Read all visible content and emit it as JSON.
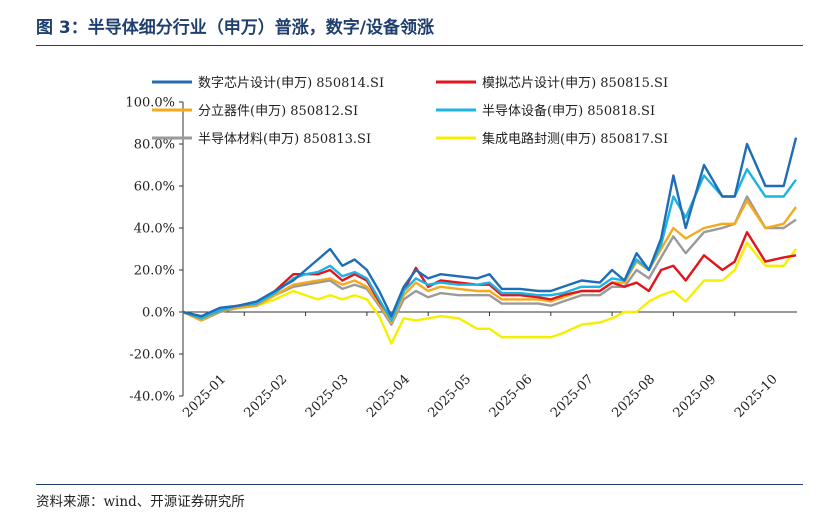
{
  "header": {
    "title": "图 3：半导体细分行业（申万）普涨，数字/设备领涨"
  },
  "footer": {
    "source": "资料来源：wind、开源证券研究所"
  },
  "chart_data": {
    "type": "line",
    "title": "图 3：半导体细分行业（申万）普涨，数字/设备领涨",
    "xlabel": "",
    "ylabel": "",
    "ylim": [
      -40,
      100
    ],
    "yticks": [
      "100.0%",
      "80.0%",
      "60.0%",
      "40.0%",
      "20.0%",
      "0.0%",
      "-20.0%",
      "-40.0%"
    ],
    "ytick_values": [
      100,
      80,
      60,
      40,
      20,
      0,
      -20,
      -40
    ],
    "xticks": [
      "2025-01",
      "2025-02",
      "2025-03",
      "2025-04",
      "2025-05",
      "2025-06",
      "2025-07",
      "2025-08",
      "2025-09",
      "2025-10"
    ],
    "xticks_t": [
      0,
      1,
      2,
      3,
      4,
      5,
      6,
      7,
      8,
      9
    ],
    "xlim": [
      0,
      10.1
    ],
    "grid": false,
    "legend_position": "top",
    "series": [
      {
        "name": "数字芯片设计(申万) 850814.SI",
        "color": "#1f6db5",
        "t": [
          0,
          0.3,
          0.6,
          0.9,
          1.2,
          1.5,
          1.8,
          2.0,
          2.2,
          2.4,
          2.6,
          2.8,
          3.0,
          3.2,
          3.4,
          3.6,
          3.8,
          4.0,
          4.2,
          4.5,
          4.8,
          5.0,
          5.2,
          5.5,
          5.8,
          6.0,
          6.2,
          6.5,
          6.8,
          7.0,
          7.2,
          7.4,
          7.6,
          7.8,
          8.0,
          8.2,
          8.5,
          8.8,
          9.0,
          9.2,
          9.5,
          9.8,
          10.0
        ],
        "values": [
          0,
          -2,
          2,
          3,
          5,
          10,
          15,
          20,
          25,
          30,
          22,
          25,
          20,
          10,
          -2,
          12,
          20,
          16,
          18,
          17,
          16,
          18,
          11,
          11,
          10,
          10,
          12,
          15,
          14,
          20,
          15,
          28,
          20,
          35,
          65,
          40,
          70,
          55,
          55,
          80,
          60,
          60,
          83
        ]
      },
      {
        "name": "模拟芯片设计(申万) 850815.SI",
        "color": "#e3141b",
        "t": [
          0,
          0.3,
          0.6,
          0.9,
          1.2,
          1.5,
          1.8,
          2.0,
          2.2,
          2.4,
          2.6,
          2.8,
          3.0,
          3.2,
          3.4,
          3.6,
          3.8,
          4.0,
          4.2,
          4.5,
          4.8,
          5.0,
          5.2,
          5.5,
          5.8,
          6.0,
          6.2,
          6.5,
          6.8,
          7.0,
          7.2,
          7.4,
          7.6,
          7.8,
          8.0,
          8.2,
          8.5,
          8.8,
          9.0,
          9.2,
          9.5,
          9.8,
          10.0
        ],
        "values": [
          0,
          -3,
          1,
          3,
          4,
          10,
          18,
          18,
          18,
          20,
          15,
          18,
          15,
          5,
          -3,
          10,
          21,
          12,
          15,
          14,
          13,
          13,
          8,
          8,
          7,
          6,
          8,
          10,
          10,
          14,
          12,
          14,
          10,
          20,
          22,
          15,
          27,
          20,
          24,
          38,
          24,
          26,
          27
        ]
      },
      {
        "name": "分立器件(申万) 850812.SI",
        "color": "#f6a91a",
        "t": [
          0,
          0.3,
          0.6,
          0.9,
          1.2,
          1.5,
          1.8,
          2.0,
          2.2,
          2.4,
          2.6,
          2.8,
          3.0,
          3.2,
          3.4,
          3.6,
          3.8,
          4.0,
          4.2,
          4.5,
          4.8,
          5.0,
          5.2,
          5.5,
          5.8,
          6.0,
          6.2,
          6.5,
          6.8,
          7.0,
          7.2,
          7.4,
          7.6,
          7.8,
          8.0,
          8.2,
          8.5,
          8.8,
          9.0,
          9.2,
          9.5,
          9.8,
          10.0
        ],
        "values": [
          0,
          -4,
          1,
          2,
          3,
          8,
          13,
          14,
          15,
          16,
          13,
          15,
          12,
          4,
          -5,
          8,
          14,
          10,
          12,
          11,
          10,
          10,
          6,
          6,
          6,
          5,
          7,
          10,
          10,
          14,
          14,
          24,
          20,
          30,
          40,
          35,
          40,
          42,
          42,
          53,
          40,
          42,
          50
        ]
      },
      {
        "name": "半导体设备(申万) 850818.SI",
        "color": "#1fb3e3",
        "t": [
          0,
          0.3,
          0.6,
          0.9,
          1.2,
          1.5,
          1.8,
          2.0,
          2.2,
          2.4,
          2.6,
          2.8,
          3.0,
          3.2,
          3.4,
          3.6,
          3.8,
          4.0,
          4.2,
          4.5,
          4.8,
          5.0,
          5.2,
          5.5,
          5.8,
          6.0,
          6.2,
          6.5,
          6.8,
          7.0,
          7.2,
          7.4,
          7.6,
          7.8,
          8.0,
          8.2,
          8.5,
          8.8,
          9.0,
          9.2,
          9.5,
          9.8,
          10.0
        ],
        "values": [
          0,
          -3,
          1,
          3,
          4,
          9,
          16,
          18,
          19,
          22,
          17,
          19,
          16,
          6,
          -4,
          10,
          16,
          13,
          14,
          13,
          13,
          14,
          9,
          9,
          8,
          8,
          9,
          12,
          12,
          16,
          15,
          25,
          20,
          32,
          55,
          45,
          65,
          55,
          55,
          68,
          55,
          55,
          63
        ]
      },
      {
        "name": "半导体材料(申万) 850813.SI",
        "color": "#9a9a9a",
        "t": [
          0,
          0.3,
          0.6,
          0.9,
          1.2,
          1.5,
          1.8,
          2.0,
          2.2,
          2.4,
          2.6,
          2.8,
          3.0,
          3.2,
          3.4,
          3.6,
          3.8,
          4.0,
          4.2,
          4.5,
          4.8,
          5.0,
          5.2,
          5.5,
          5.8,
          6.0,
          6.2,
          6.5,
          6.8,
          7.0,
          7.2,
          7.4,
          7.6,
          7.8,
          8.0,
          8.2,
          8.5,
          8.8,
          9.0,
          9.2,
          9.5,
          9.8,
          10.0
        ],
        "values": [
          0,
          -4,
          0,
          2,
          3,
          8,
          12,
          13,
          14,
          15,
          11,
          13,
          11,
          3,
          -6,
          6,
          10,
          7,
          9,
          8,
          8,
          8,
          4,
          4,
          4,
          3,
          5,
          8,
          8,
          12,
          12,
          20,
          16,
          26,
          36,
          28,
          38,
          40,
          42,
          55,
          40,
          40,
          44
        ]
      },
      {
        "name": "集成电路封测(申万) 850817.SI",
        "color": "#f5f000",
        "t": [
          0,
          0.3,
          0.6,
          0.9,
          1.2,
          1.5,
          1.8,
          2.0,
          2.2,
          2.4,
          2.6,
          2.8,
          3.0,
          3.2,
          3.4,
          3.6,
          3.8,
          4.0,
          4.2,
          4.5,
          4.8,
          5.0,
          5.2,
          5.5,
          5.8,
          6.0,
          6.2,
          6.5,
          6.8,
          7.0,
          7.2,
          7.4,
          7.6,
          7.8,
          8.0,
          8.2,
          8.5,
          8.8,
          9.0,
          9.2,
          9.5,
          9.8,
          10.0
        ],
        "values": [
          0,
          -4,
          0,
          2,
          3,
          6,
          10,
          8,
          6,
          8,
          6,
          8,
          6,
          -2,
          -15,
          -3,
          -4,
          -3,
          -2,
          -3,
          -8,
          -8,
          -12,
          -12,
          -12,
          -12,
          -10,
          -6,
          -5,
          -3,
          0,
          0,
          5,
          8,
          10,
          5,
          15,
          15,
          20,
          33,
          22,
          22,
          30
        ]
      }
    ]
  }
}
